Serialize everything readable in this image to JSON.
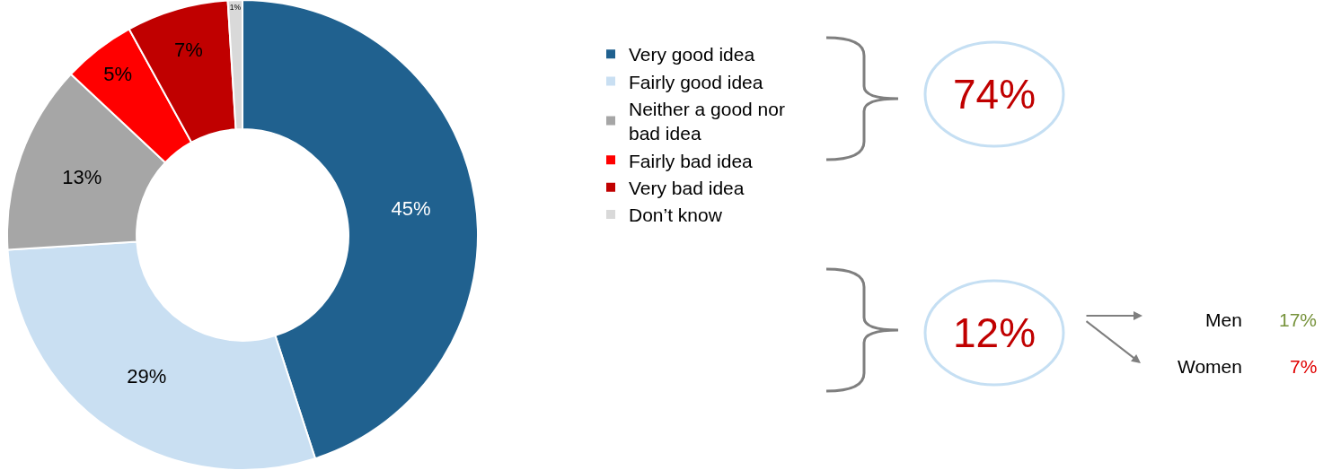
{
  "chart_data": {
    "type": "donut",
    "categories": [
      "Very good idea",
      "Fairly good idea",
      "Neither a good nor bad idea",
      "Fairly bad idea",
      "Very bad idea",
      "Don’t know"
    ],
    "values": [
      45,
      29,
      13,
      5,
      7,
      1
    ],
    "colors": [
      "#20618f",
      "#c9dff2",
      "#a6a6a6",
      "#ff0000",
      "#c00000",
      "#d9d9d9"
    ],
    "value_labels": [
      "45%",
      "29%",
      "13%",
      "5%",
      "7%",
      "1%"
    ],
    "legend": "right",
    "annotations": [
      "74%",
      "12%",
      "Men",
      "17%",
      "Women",
      "7%"
    ]
  }
}
